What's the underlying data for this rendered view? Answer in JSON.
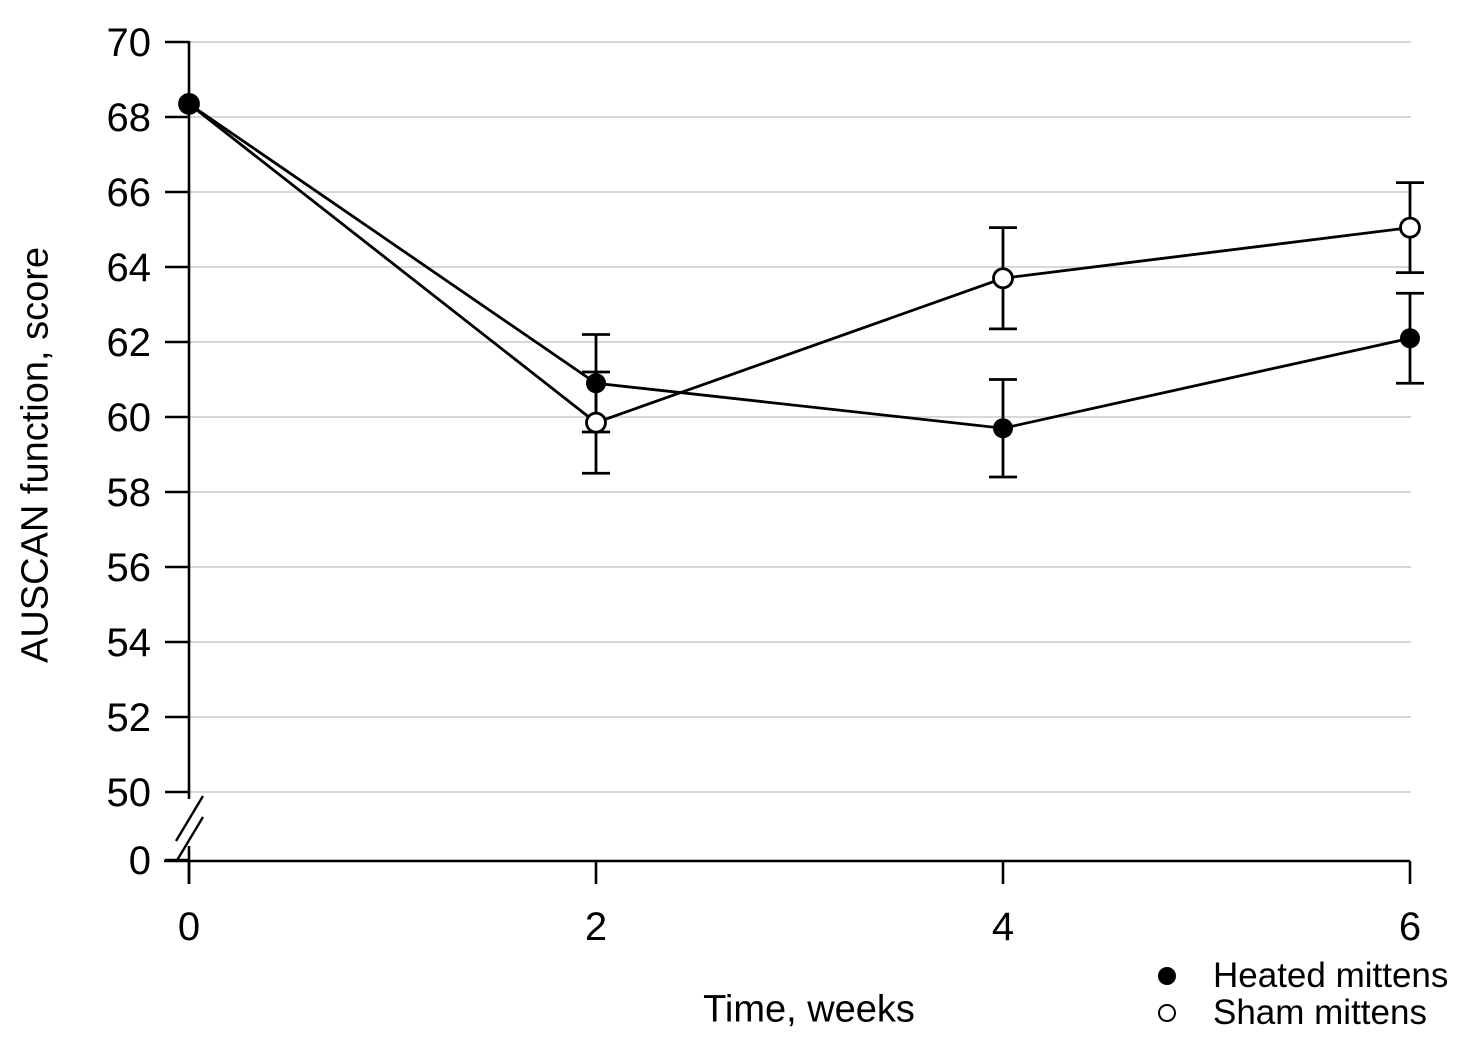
{
  "chart_data": {
    "type": "line",
    "title": "",
    "xlabel": "Time, weeks",
    "ylabel": "AUSCAN function, score",
    "x": [
      0,
      2,
      4,
      6
    ],
    "x_tick_labels": [
      "0",
      "2",
      "4",
      "6"
    ],
    "y_ticks": [
      50,
      52,
      54,
      56,
      58,
      60,
      62,
      64,
      66,
      68,
      70
    ],
    "ylim": [
      50,
      70
    ],
    "y_axis_break": {
      "shown": true,
      "origin_label": "0"
    },
    "grid": "horizontal",
    "legend_position": "bottom-right",
    "series": [
      {
        "name": "Heated mittens",
        "marker": "filled-circle",
        "values": [
          68.35,
          60.9,
          59.7,
          62.1
        ],
        "errors": [
          0,
          1.3,
          1.3,
          1.2
        ]
      },
      {
        "name": "Sham mittens",
        "marker": "open-circle",
        "values": [
          68.35,
          59.85,
          63.7,
          65.05
        ],
        "errors": [
          0,
          1.35,
          1.35,
          1.2
        ]
      }
    ],
    "colors": {
      "line": "#000000",
      "grid": "#d8d8d8",
      "background": "#ffffff",
      "text": "#000000"
    }
  }
}
